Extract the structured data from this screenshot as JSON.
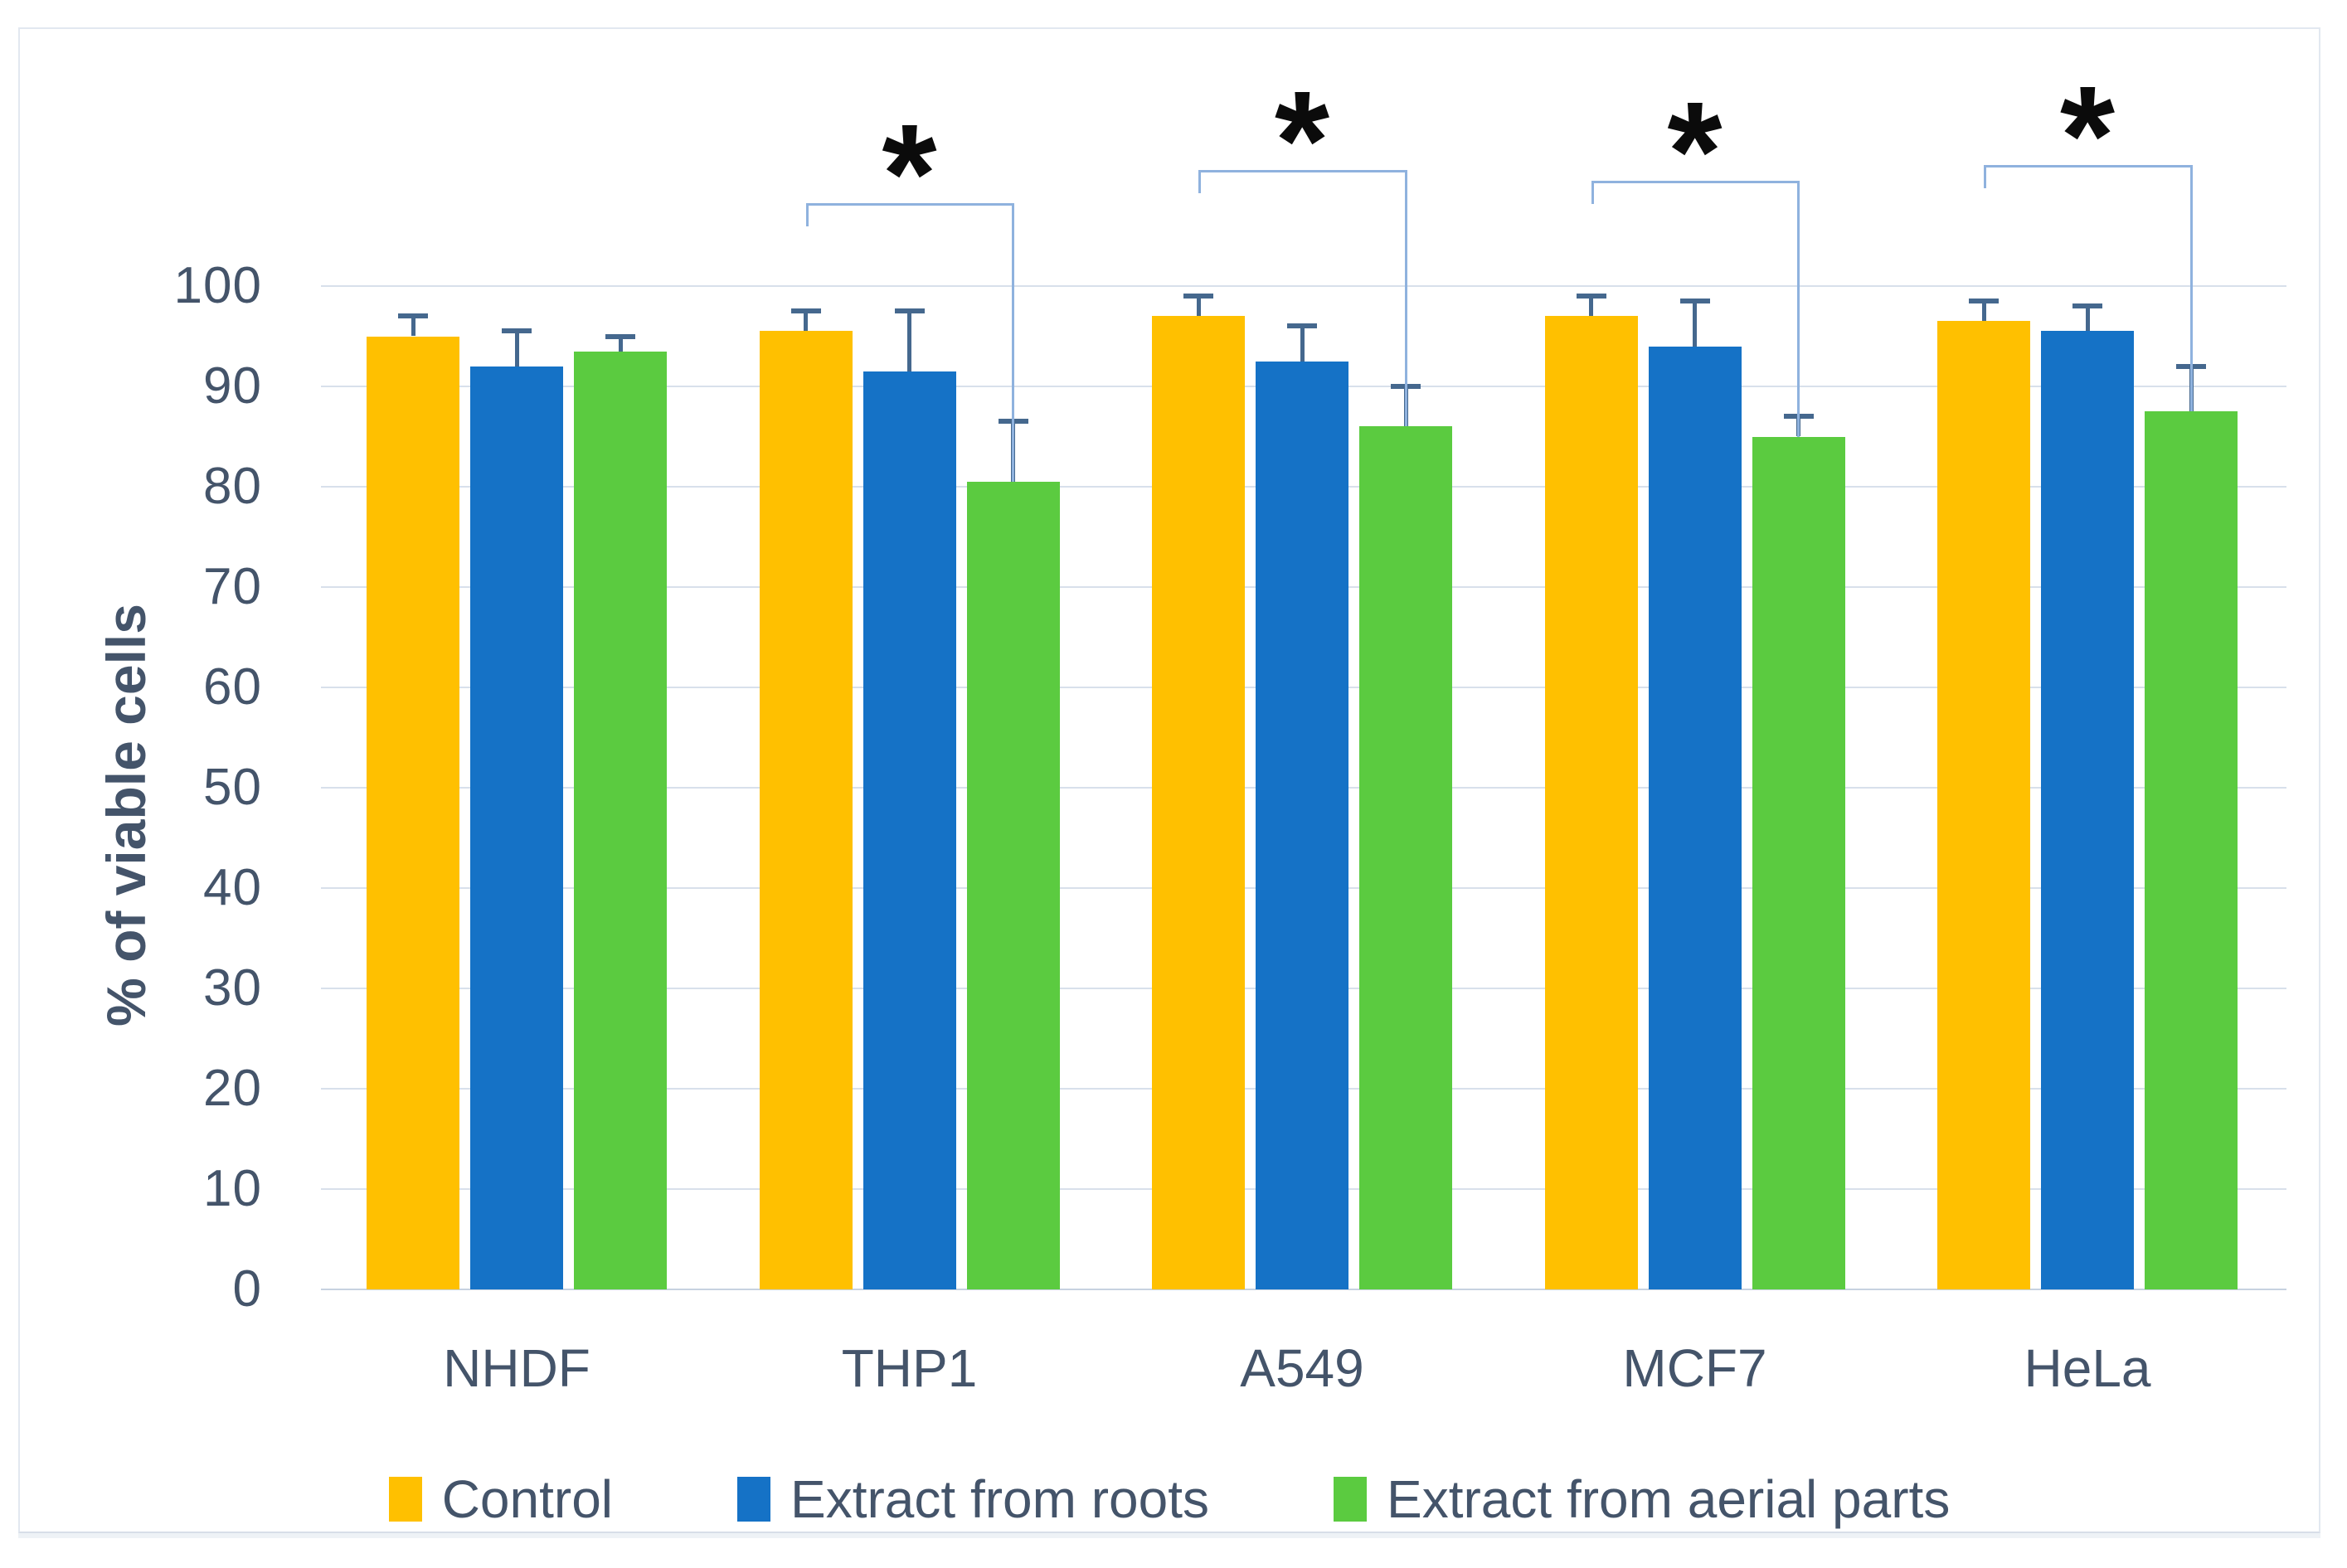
{
  "chart_data": {
    "type": "bar",
    "title": "",
    "ylabel": "% of viable cells",
    "xlabel": "",
    "categories": [
      "NHDF",
      "THP1",
      "A549",
      "MCF7",
      "HeLa"
    ],
    "series": [
      {
        "name": "Control",
        "color": "#FFC000",
        "values": [
          95,
          95.5,
          97,
          97,
          96.5
        ],
        "errors": [
          2,
          2,
          2,
          2,
          2
        ]
      },
      {
        "name": "Extract from roots",
        "color": "#1572C6",
        "values": [
          92,
          91.5,
          92.5,
          94,
          95.5
        ],
        "errors": [
          3.5,
          6,
          3.5,
          4.5,
          2.5
        ]
      },
      {
        "name": "Extract from aerial parts",
        "color": "#5BCB40",
        "values": [
          93.5,
          80.5,
          86,
          85,
          87.5
        ],
        "errors": [
          1.5,
          6,
          4,
          2,
          4.5
        ]
      }
    ],
    "ylim": [
      0,
      100
    ],
    "yticks": [
      0,
      10,
      20,
      30,
      40,
      50,
      60,
      70,
      80,
      90,
      100
    ],
    "grid": true,
    "legend_position": "bottom",
    "error_bars": "upper only",
    "significance": [
      {
        "category": "THP1",
        "between": [
          "Control",
          "Extract from aerial parts"
        ],
        "label": "*"
      },
      {
        "category": "A549",
        "between": [
          "Control",
          "Extract from aerial parts"
        ],
        "label": "*"
      },
      {
        "category": "MCF7",
        "between": [
          "Control",
          "Extract from aerial parts"
        ],
        "label": "*"
      },
      {
        "category": "HeLa",
        "between": [
          "Control",
          "Extract from aerial parts"
        ],
        "label": "*"
      }
    ]
  },
  "colors": {
    "text": "#44546A",
    "gridline": "#D8E0EB",
    "axis_line": "#C7D2E0",
    "error_bar": "#45688E",
    "bracket": "#8FB2DE",
    "chart_border": "#E2E8F0",
    "background": "#FFFFFF"
  }
}
